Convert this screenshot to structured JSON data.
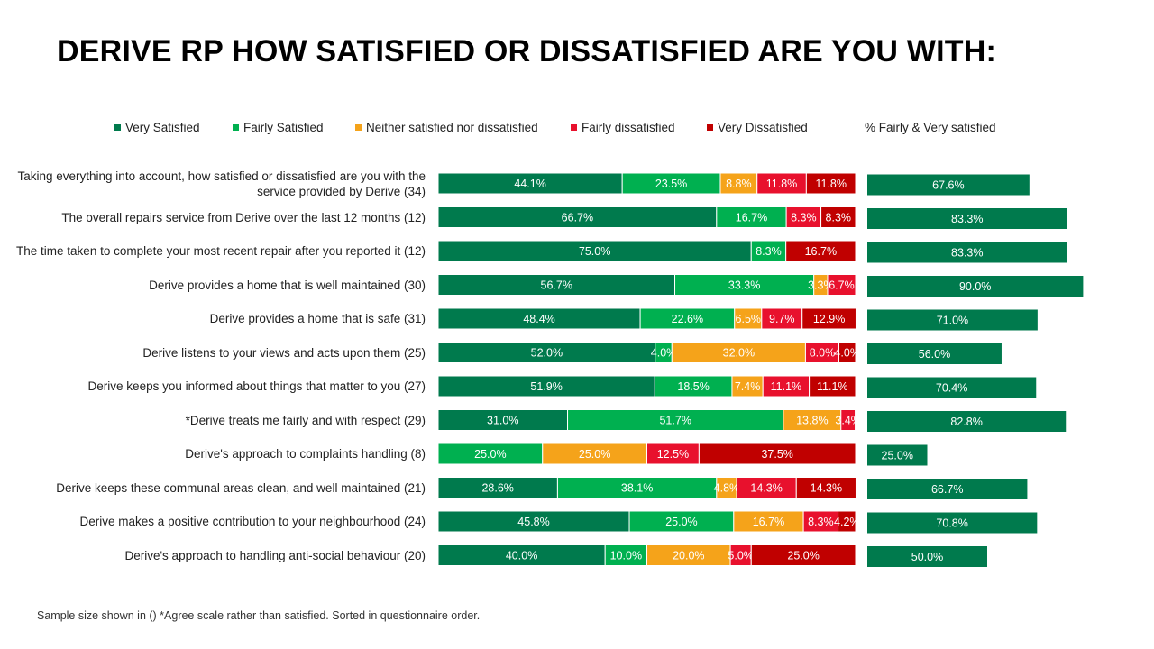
{
  "title": "DERIVE RP HOW SATISFIED OR DISSATISFIED ARE YOU WITH:",
  "footnote": "Sample size shown in () *Agree scale rather than satisfied. Sorted in questionnaire order.",
  "chart_data": {
    "type": "bar",
    "orientation": "horizontal",
    "stacked": true,
    "xlim": [
      0,
      100
    ],
    "legend": [
      {
        "name": "Very Satisfied",
        "color": "#007a4d"
      },
      {
        "name": "Fairly Satisfied",
        "color": "#00b050"
      },
      {
        "name": "Neither satisfied nor dissatisfied",
        "color": "#f5a31a"
      },
      {
        "name": "Fairly dissatisfied",
        "color": "#e8112d"
      },
      {
        "name": "Very Dissatisfied",
        "color": "#c00000"
      },
      {
        "name": "% Fairly & Very satisfied",
        "color": "#007a4d"
      }
    ],
    "categories": [
      "Taking everything into account, how satisfied or dissatisfied are you with the service provided by Derive (34)",
      "The overall repairs service from Derive over the last 12 months (12)",
      "The time taken to complete your most recent repair after you reported it (12)",
      "Derive provides a home that is well maintained (30)",
      "Derive provides a home that is safe (31)",
      "Derive listens to your views and acts upon them (25)",
      "Derive keeps you informed about things that matter to you (27)",
      "*Derive treats me fairly and with respect (29)",
      "Derive's approach to complaints handling (8)",
      "Derive keeps these communal areas clean, and well maintained (21)",
      "Derive makes a positive contribution to your neighbourhood (24)",
      "Derive's approach to handling anti-social behaviour (20)"
    ],
    "series": [
      {
        "name": "Very Satisfied",
        "color": "#007a4d",
        "values": [
          44.1,
          66.7,
          75.0,
          56.7,
          48.4,
          52.0,
          51.9,
          31.0,
          0,
          28.6,
          45.8,
          40.0
        ]
      },
      {
        "name": "Fairly Satisfied",
        "color": "#00b050",
        "values": [
          23.5,
          16.7,
          8.3,
          33.3,
          22.6,
          4.0,
          18.5,
          51.7,
          25.0,
          38.1,
          25.0,
          10.0
        ]
      },
      {
        "name": "Neither satisfied nor dissatisfied",
        "color": "#f5a31a",
        "values": [
          8.8,
          0,
          0,
          3.3,
          6.5,
          32.0,
          7.4,
          13.8,
          25.0,
          4.8,
          16.7,
          20.0
        ]
      },
      {
        "name": "Fairly dissatisfied",
        "color": "#e8112d",
        "values": [
          11.8,
          8.3,
          0,
          6.7,
          9.7,
          8.0,
          11.1,
          3.4,
          12.5,
          14.3,
          8.3,
          5.0
        ]
      },
      {
        "name": "Very Dissatisfied",
        "color": "#c00000",
        "values": [
          11.8,
          8.3,
          16.7,
          0,
          12.9,
          4.0,
          11.1,
          0,
          37.5,
          14.3,
          4.2,
          25.0
        ]
      }
    ],
    "summary": {
      "name": "% Fairly & Very satisfied",
      "color": "#007a4d",
      "values": [
        67.6,
        83.3,
        83.3,
        90.0,
        71.0,
        56.0,
        70.4,
        82.8,
        25.0,
        66.7,
        70.8,
        50.0
      ]
    }
  }
}
